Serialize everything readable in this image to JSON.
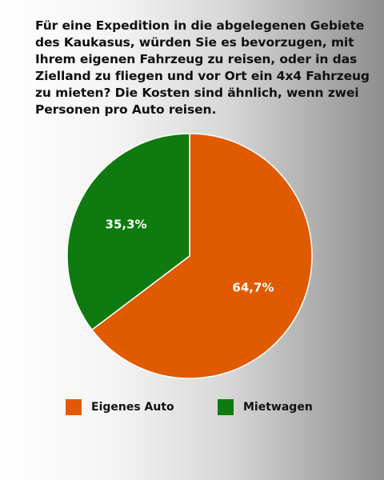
{
  "chart_data": {
    "type": "pie",
    "title": "Für eine Expedition in die abgelegenen Gebiete des Kaukasus, würden Sie es bevorzugen, mit Ihrem eigenen Fahrzeug zu reisen, oder in das Zielland zu fliegen und vor Ort ein 4x4 Fahrzeug zu mieten? Die Kosten sind ähnlich, wenn zwei Personen pro Auto reisen.",
    "categories": [
      "Eigenes Auto",
      "Mietwagen"
    ],
    "values": [
      64.7,
      35.3
    ],
    "value_labels": [
      "64,7%",
      "35,3%"
    ],
    "colors": [
      "#e05a00",
      "#0f7a0f"
    ],
    "legend_position": "bottom"
  }
}
